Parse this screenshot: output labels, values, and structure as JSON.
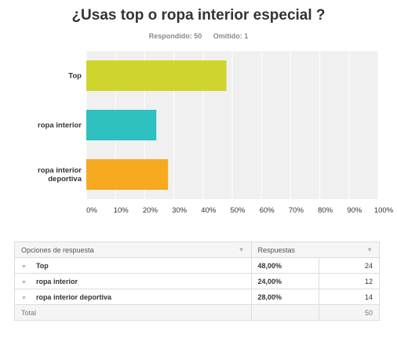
{
  "chart_data": {
    "type": "bar",
    "orientation": "horizontal",
    "title": "¿Usas top o ropa interior especial ?",
    "categories": [
      "Top",
      "ropa interior",
      "ropa interior deportiva"
    ],
    "values": [
      48,
      24,
      28
    ],
    "unit": "%",
    "xlim": [
      0,
      100
    ],
    "xticks": [
      "0%",
      "10%",
      "20%",
      "30%",
      "40%",
      "50%",
      "60%",
      "70%",
      "80%",
      "90%",
      "100%"
    ],
    "grid": true,
    "colors": [
      "#cfd52c",
      "#2fc0c0",
      "#f7a91f"
    ]
  },
  "meta": {
    "answered_label": "Respondido: 50",
    "skipped_label": "Omitido: 1"
  },
  "table": {
    "headers": {
      "option": "Opciones de respuesta",
      "responses": "Respuestas"
    },
    "rows": [
      {
        "option": "Top",
        "percent": "48,00%",
        "count": "24"
      },
      {
        "option": "ropa interior",
        "percent": "24,00%",
        "count": "12"
      },
      {
        "option": "ropa interior deportiva",
        "percent": "28,00%",
        "count": "14"
      }
    ],
    "total_label": "Total",
    "total_count": "50"
  }
}
